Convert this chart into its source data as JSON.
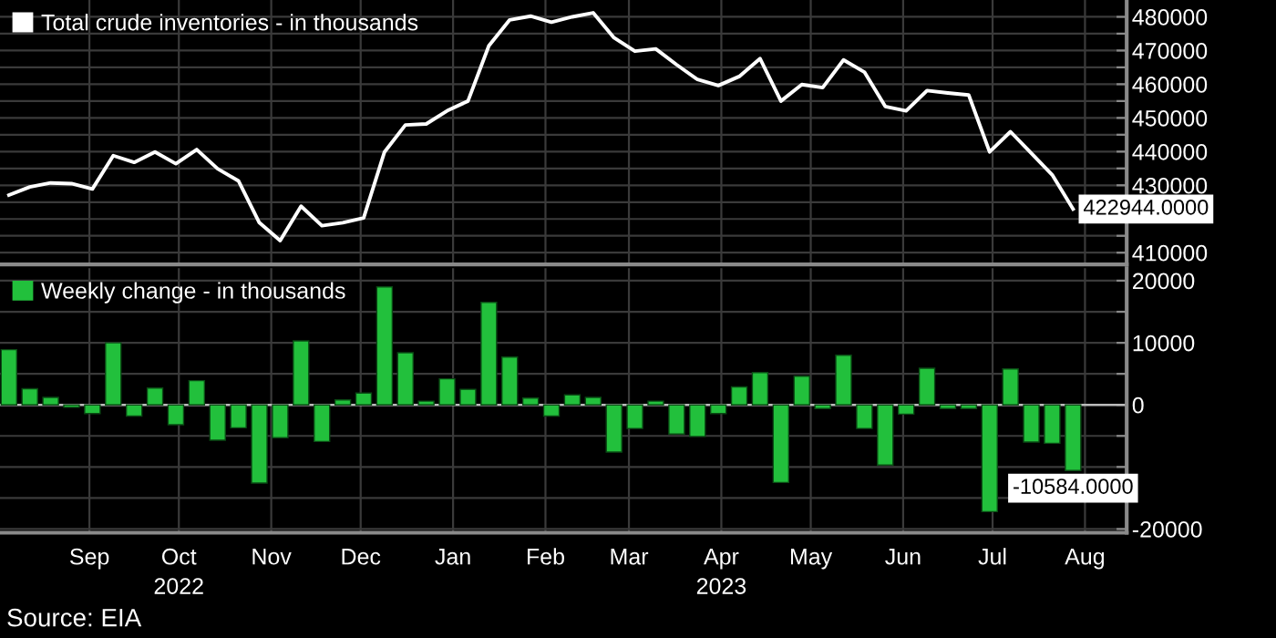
{
  "chart_data": [
    {
      "type": "line",
      "x": [
        "2022-08-05",
        "2022-08-12",
        "2022-08-19",
        "2022-08-26",
        "2022-09-02",
        "2022-09-09",
        "2022-09-16",
        "2022-09-23",
        "2022-09-30",
        "2022-10-07",
        "2022-10-14",
        "2022-10-21",
        "2022-10-28",
        "2022-11-04",
        "2022-11-11",
        "2022-11-18",
        "2022-11-25",
        "2022-12-02",
        "2022-12-09",
        "2022-12-16",
        "2022-12-23",
        "2022-12-30",
        "2023-01-06",
        "2023-01-13",
        "2023-01-20",
        "2023-01-27",
        "2023-02-03",
        "2023-02-10",
        "2023-02-17",
        "2023-02-24",
        "2023-03-03",
        "2023-03-10",
        "2023-03-17",
        "2023-03-24",
        "2023-03-31",
        "2023-04-07",
        "2023-04-14",
        "2023-04-21",
        "2023-04-28",
        "2023-05-05",
        "2023-05-12",
        "2023-05-19",
        "2023-05-26",
        "2023-06-02",
        "2023-06-09",
        "2023-06-16",
        "2023-06-23",
        "2023-06-30",
        "2023-07-07",
        "2023-07-14",
        "2023-07-21",
        "2023-07-28"
      ],
      "series": [
        {
          "name": "Total crude inventories - in thousands",
          "color": "#ffffff",
          "values": [
            427100,
            429500,
            430700,
            430500,
            428900,
            438800,
            436800,
            439900,
            436400,
            440600,
            434900,
            431300,
            418900,
            413600,
            423800,
            418000,
            418900,
            420300,
            439900,
            447900,
            448200,
            452100,
            455000,
            471400,
            479100,
            480200,
            478400,
            480000,
            481200,
            473800,
            469800,
            470500,
            465800,
            461400,
            459600,
            462300,
            467600,
            455000,
            459900,
            459000,
            467200,
            463600,
            453400,
            452100,
            458100,
            457400,
            456800,
            439900,
            445900,
            439500,
            433100,
            422944
          ],
          "value_labels": [
            null,
            null,
            null,
            null,
            null,
            null,
            null,
            null,
            null,
            null,
            null,
            null,
            null,
            null,
            null,
            null,
            null,
            null,
            null,
            null,
            null,
            null,
            null,
            null,
            null,
            null,
            null,
            null,
            null,
            null,
            null,
            null,
            null,
            null,
            null,
            null,
            null,
            null,
            null,
            null,
            null,
            null,
            null,
            null,
            null,
            null,
            null,
            null,
            null,
            null,
            null,
            "422944.0000"
          ]
        }
      ],
      "xlim": [
        "2022-08-02",
        "2023-08-15"
      ],
      "xticks": [
        {
          "value": "2022-09-01",
          "label": null
        },
        {
          "value": "2022-10-01",
          "label": null
        },
        {
          "value": "2022-11-01",
          "label": null
        },
        {
          "value": "2022-12-01",
          "label": null
        },
        {
          "value": "2023-01-01",
          "label": null
        },
        {
          "value": "2023-02-01",
          "label": null
        },
        {
          "value": "2023-03-01",
          "label": null
        },
        {
          "value": "2023-04-01",
          "label": null
        },
        {
          "value": "2023-05-01",
          "label": null
        },
        {
          "value": "2023-06-01",
          "label": null
        },
        {
          "value": "2023-07-01",
          "label": null
        },
        {
          "value": "2023-08-01",
          "label": null
        }
      ],
      "ylim": [
        406500,
        485000
      ],
      "yticks": [
        410000,
        {
          "value": 415000,
          "label": null
        },
        {
          "value": 420000,
          "label": null
        },
        {
          "value": 425000,
          "label": null
        },
        430000,
        {
          "value": 435000,
          "label": null
        },
        440000,
        {
          "value": 445000,
          "label": null
        },
        450000,
        {
          "value": 455000,
          "label": null
        },
        460000,
        {
          "value": 465000,
          "label": null
        },
        470000,
        {
          "value": 475000,
          "label": null
        },
        480000
      ],
      "tick_labels": "y",
      "grid": true,
      "legend": "top left"
    },
    {
      "type": "bar",
      "x": [
        "2022-08-05",
        "2022-08-12",
        "2022-08-19",
        "2022-08-26",
        "2022-09-02",
        "2022-09-09",
        "2022-09-16",
        "2022-09-23",
        "2022-09-30",
        "2022-10-07",
        "2022-10-14",
        "2022-10-21",
        "2022-10-28",
        "2022-11-04",
        "2022-11-11",
        "2022-11-18",
        "2022-11-25",
        "2022-12-02",
        "2022-12-09",
        "2022-12-16",
        "2022-12-23",
        "2022-12-30",
        "2023-01-06",
        "2023-01-13",
        "2023-01-20",
        "2023-01-27",
        "2023-02-03",
        "2023-02-10",
        "2023-02-17",
        "2023-02-24",
        "2023-03-03",
        "2023-03-10",
        "2023-03-17",
        "2023-03-24",
        "2023-03-31",
        "2023-04-07",
        "2023-04-14",
        "2023-04-21",
        "2023-04-28",
        "2023-05-05",
        "2023-05-12",
        "2023-05-19",
        "2023-05-26",
        "2023-06-02",
        "2023-06-09",
        "2023-06-16",
        "2023-06-23",
        "2023-06-30",
        "2023-07-07",
        "2023-07-14",
        "2023-07-21",
        "2023-07-28"
      ],
      "series": [
        {
          "name": "Weekly change - in thousands",
          "color": "#22c03c",
          "values": [
            8900,
            2600,
            1200,
            -400,
            -1400,
            10000,
            -1800,
            2700,
            -3200,
            3900,
            -5700,
            -3700,
            -12600,
            -5300,
            10300,
            -5900,
            800,
            1900,
            19000,
            8400,
            600,
            4200,
            2500,
            16500,
            7700,
            1100,
            -1800,
            1600,
            1200,
            -7600,
            -3800,
            600,
            -4700,
            -5100,
            -1400,
            2900,
            5200,
            -12500,
            4600,
            -600,
            8000,
            -3800,
            -9700,
            -1500,
            5900,
            -600,
            -600,
            -17200,
            5800,
            -6000,
            -6200,
            -10584
          ],
          "value_labels": [
            null,
            null,
            null,
            null,
            null,
            null,
            null,
            null,
            null,
            null,
            null,
            null,
            null,
            null,
            null,
            null,
            null,
            null,
            null,
            null,
            null,
            null,
            null,
            null,
            null,
            null,
            null,
            null,
            null,
            null,
            null,
            null,
            null,
            null,
            null,
            null,
            null,
            null,
            null,
            null,
            null,
            null,
            null,
            null,
            null,
            null,
            null,
            null,
            null,
            null,
            null,
            "-10584.0000"
          ]
        }
      ],
      "xlim": [
        "2022-08-02",
        "2023-08-15"
      ],
      "xticks": [
        {
          "value": "2022-09-01",
          "label": "Sep"
        },
        {
          "value": "2022-10-01",
          "label": "Oct\n2022"
        },
        {
          "value": "2022-11-01",
          "label": "Nov"
        },
        {
          "value": "2022-12-01",
          "label": "Dec"
        },
        {
          "value": "2023-01-01",
          "label": "Jan"
        },
        {
          "value": "2023-02-01",
          "label": "Feb"
        },
        {
          "value": "2023-03-01",
          "label": "Mar"
        },
        {
          "value": "2023-04-01",
          "label": "Apr\n2023"
        },
        {
          "value": "2023-05-01",
          "label": "May"
        },
        {
          "value": "2023-06-01",
          "label": "Jun"
        },
        {
          "value": "2023-07-01",
          "label": "Jul"
        },
        {
          "value": "2023-08-01",
          "label": "Aug"
        }
      ],
      "ylim": [
        -20600,
        22000
      ],
      "yticks": [
        -20000,
        {
          "value": -15000,
          "label": null
        },
        {
          "value": -10000,
          "label": null
        },
        {
          "value": -5000,
          "label": null
        },
        0,
        {
          "value": 5000,
          "label": null
        },
        10000,
        {
          "value": 15000,
          "label": null
        },
        20000
      ],
      "grid": true,
      "legend": "top left",
      "annotations": [
        "Source: EIA"
      ]
    }
  ]
}
